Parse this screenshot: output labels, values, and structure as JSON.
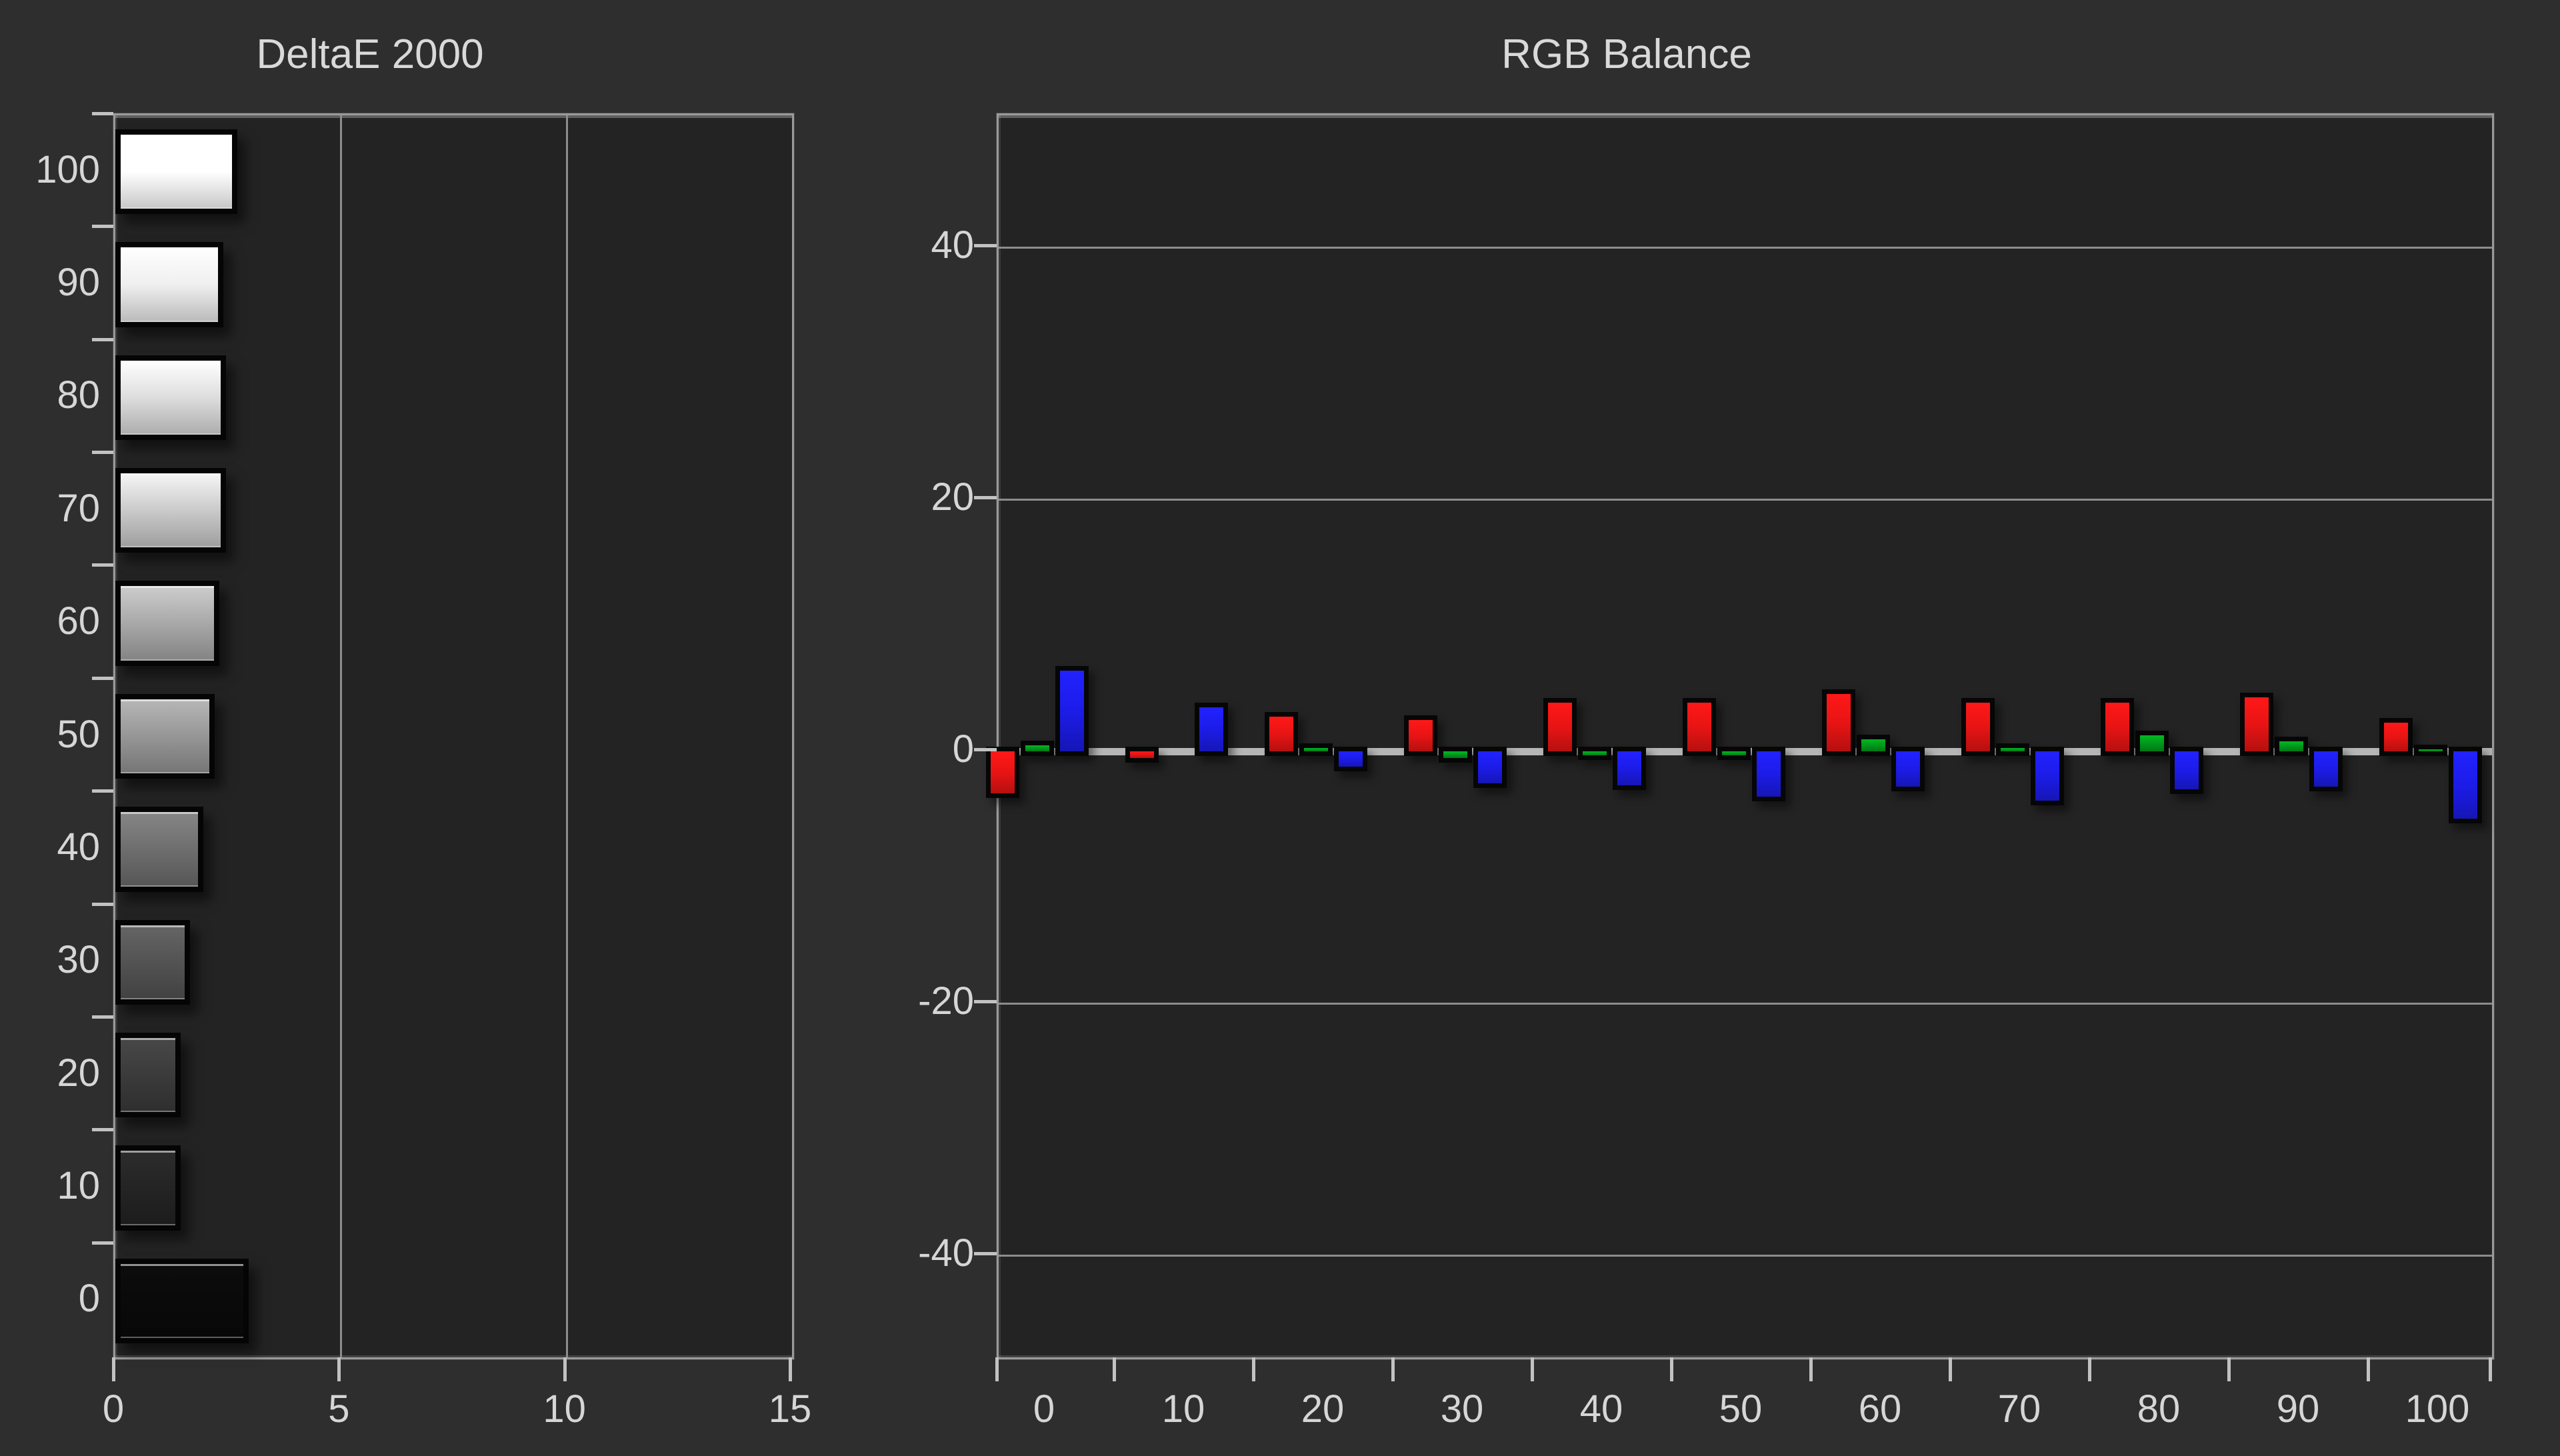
{
  "page": {
    "background": "#2e2e2e",
    "plot_background": "#232323",
    "grid_color": "#8d8d8d",
    "border_color": "#9a9a9a",
    "text_color": "#d6d6d6",
    "zero_line_color": "#b6b6b6"
  },
  "chart_data": [
    {
      "type": "bar",
      "orientation": "horizontal",
      "title": "DeltaE 2000",
      "ylabel": "",
      "xlabel": "",
      "categories": [
        "100",
        "90",
        "80",
        "70",
        "60",
        "50",
        "40",
        "30",
        "20",
        "10",
        "0"
      ],
      "values": [
        2.7,
        2.4,
        2.45,
        2.45,
        2.3,
        2.2,
        1.95,
        1.65,
        1.45,
        1.45,
        2.95
      ],
      "bar_shades": [
        "#ffffff",
        "#efefef",
        "#dddddd",
        "#cacaca",
        "#a8a8a8",
        "#969696",
        "#6e6e6e",
        "#535353",
        "#3b3b3b",
        "#242424",
        "#0a0a0a"
      ],
      "bar_border_color": "#050505",
      "xlim": [
        0,
        15
      ],
      "x_tick_labels": [
        "0",
        "5",
        "10",
        "15"
      ],
      "x_tick_values": [
        0,
        5,
        10,
        15
      ],
      "grid": "vertical gridlines at 5 and 10",
      "legend": "none"
    },
    {
      "type": "bar",
      "orientation": "vertical-grouped",
      "title": "RGB Balance",
      "ylabel": "",
      "xlabel": "",
      "categories": [
        "0",
        "10",
        "20",
        "30",
        "40",
        "50",
        "60",
        "70",
        "80",
        "90",
        "100"
      ],
      "series": [
        {
          "name": "Red",
          "color": "#e81414",
          "values": [
            -3.3,
            -0.5,
            2.8,
            2.5,
            3.9,
            3.9,
            4.6,
            3.9,
            3.9,
            4.3,
            2.3
          ]
        },
        {
          "name": "Green",
          "color": "#00981c",
          "values": [
            0.5,
            0.0,
            0.3,
            -0.5,
            -0.3,
            -0.3,
            1.0,
            0.3,
            1.3,
            0.8,
            0.2
          ]
        },
        {
          "name": "Blue",
          "color": "#1c1ce8",
          "values": [
            6.4,
            3.5,
            -1.2,
            -2.5,
            -2.7,
            -3.6,
            -2.8,
            -3.9,
            -3.0,
            -2.8,
            -5.3
          ]
        }
      ],
      "ylim": [
        -48,
        50.5
      ],
      "y_tick_labels": [
        "40",
        "20",
        "0",
        "-20",
        "-40"
      ],
      "y_tick_values": [
        40,
        20,
        0,
        -20,
        -40
      ],
      "grid": "horizontal gridlines every 20, emphasized zero line",
      "legend": "none"
    }
  ]
}
